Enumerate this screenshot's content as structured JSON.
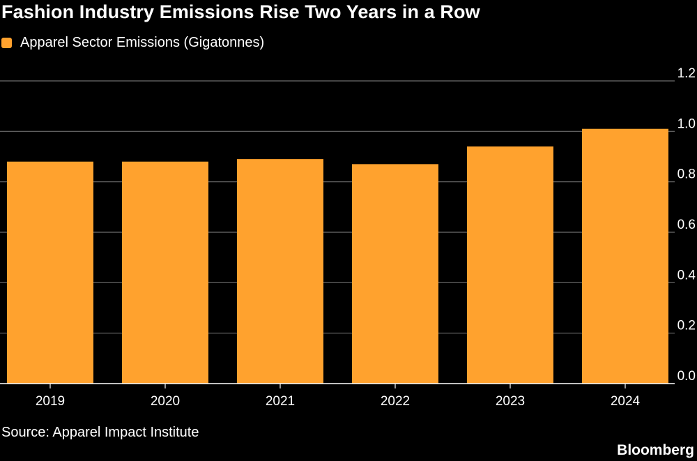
{
  "title": "Fashion Industry Emissions Rise Two Years in a Row",
  "source": "Source: Apparel Impact Institute",
  "logo": "Bloomberg",
  "colors": {
    "background": "#000000",
    "bar": "#ffa22e",
    "grid": "#6e6e6e",
    "text": "#ffffff"
  },
  "chart_data": {
    "type": "bar",
    "categories": [
      "2019",
      "2020",
      "2021",
      "2022",
      "2023",
      "2024"
    ],
    "series": [
      {
        "name": "Apparel Sector Emissions (Gigatonnes)",
        "values": [
          0.88,
          0.88,
          0.89,
          0.87,
          0.94,
          1.01
        ]
      }
    ],
    "ylim": [
      0,
      1.2
    ],
    "yticks": [
      "0.0",
      "0.2",
      "0.4",
      "0.6",
      "0.8",
      "1.0",
      "1.2"
    ],
    "y_axis_side": "right",
    "grid": true,
    "legend_position": "top-left",
    "xlabel": "",
    "ylabel": ""
  }
}
